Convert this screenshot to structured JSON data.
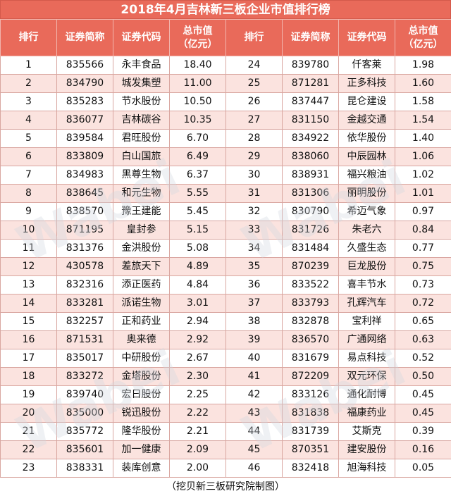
{
  "title": "2018年4月吉林新三板企业市值排行榜",
  "headers": [
    "排行",
    "证券简称",
    "证券代码",
    "总市值\n（亿元）",
    "排行",
    "证券简称",
    "证券代码",
    "总市值\n（亿元）"
  ],
  "rows": [
    [
      "1",
      "835566",
      "永丰食品",
      "18.40",
      "24",
      "839780",
      "仟客莱",
      "1.98"
    ],
    [
      "2",
      "834790",
      "城发集塑",
      "11.00",
      "25",
      "871281",
      "正多科技",
      "1.60"
    ],
    [
      "3",
      "835283",
      "节水股份",
      "10.50",
      "26",
      "837447",
      "昆仑建设",
      "1.58"
    ],
    [
      "4",
      "836077",
      "吉林碳谷",
      "10.35",
      "27",
      "831150",
      "金越交通",
      "1.54"
    ],
    [
      "5",
      "839584",
      "君旺股份",
      "6.70",
      "28",
      "834922",
      "依华股份",
      "1.40"
    ],
    [
      "6",
      "833809",
      "白山国旅",
      "6.49",
      "29",
      "838060",
      "中辰园林",
      "1.06"
    ],
    [
      "7",
      "834983",
      "黑尊生物",
      "6.37",
      "30",
      "838931",
      "福兴粮油",
      "1.02"
    ],
    [
      "8",
      "838645",
      "和元生物",
      "5.55",
      "31",
      "831306",
      "丽明股份",
      "1.01"
    ],
    [
      "9",
      "838570",
      "豫王建能",
      "5.45",
      "32",
      "830790",
      "希迈气象",
      "0.97"
    ],
    [
      "10",
      "871195",
      "皇封参",
      "5.15",
      "33",
      "831726",
      "朱老六",
      "0.84"
    ],
    [
      "11",
      "831376",
      "金洪股份",
      "5.08",
      "34",
      "831484",
      "久盛生态",
      "0.77"
    ],
    [
      "12",
      "430578",
      "差旅天下",
      "4.89",
      "35",
      "870239",
      "巨龙股份",
      "0.75"
    ],
    [
      "13",
      "832316",
      "添正医药",
      "4.84",
      "36",
      "833522",
      "喜丰节水",
      "0.73"
    ],
    [
      "14",
      "833281",
      "派诺生物",
      "3.01",
      "37",
      "833793",
      "孔辉汽车",
      "0.72"
    ],
    [
      "15",
      "832257",
      "正和药业",
      "2.94",
      "38",
      "832878",
      "宝利祥",
      "0.65"
    ],
    [
      "16",
      "871531",
      "奥来德",
      "2.92",
      "39",
      "836570",
      "广通网络",
      "0.63"
    ],
    [
      "17",
      "835017",
      "中研股份",
      "2.67",
      "40",
      "831679",
      "易点科技",
      "0.52"
    ],
    [
      "18",
      "833272",
      "金塔股份",
      "2.30",
      "41",
      "872209",
      "双元环保",
      "0.50"
    ],
    [
      "19",
      "839740",
      "宏日股份",
      "2.25",
      "42",
      "833126",
      "通化耐博",
      "0.45"
    ],
    [
      "20",
      "835000",
      "锐迅股份",
      "2.22",
      "43",
      "831838",
      "福康药业",
      "0.45"
    ],
    [
      "21",
      "835772",
      "隆华股份",
      "2.21",
      "44",
      "831739",
      "艾斯克",
      "0.39"
    ],
    [
      "22",
      "835601",
      "加一健康",
      "2.09",
      "45",
      "870351",
      "建安股份",
      "0.16"
    ],
    [
      "23",
      "838331",
      "装库创意",
      "2.00",
      "46",
      "832418",
      "旭海科技",
      "0.05"
    ]
  ],
  "footer": "（挖贝新三板研究院制图）"
}
